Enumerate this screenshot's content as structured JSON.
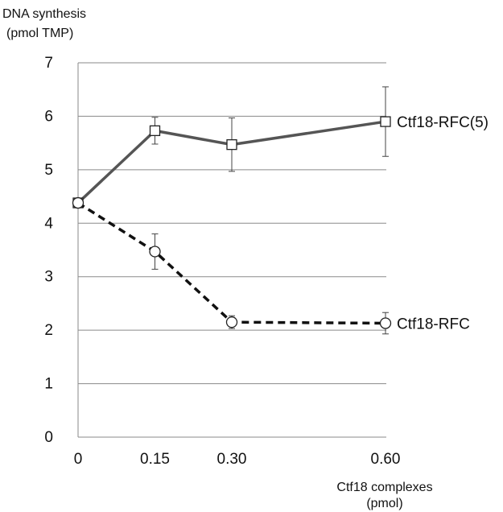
{
  "chart_data": {
    "type": "line",
    "ylabel_line1": "DNA synthesis",
    "ylabel_line2": "(pmol TMP)",
    "xlabel_line1": "Ctf18 complexes",
    "xlabel_line2": "(pmol)",
    "x": [
      0,
      0.15,
      0.3,
      0.6
    ],
    "x_tick_labels": [
      "0",
      "0.15",
      "0.30",
      "0.60"
    ],
    "ylim": [
      0,
      7
    ],
    "y_ticks": [
      0,
      1,
      2,
      3,
      4,
      5,
      6,
      7
    ],
    "grid": true,
    "series": [
      {
        "name": "Ctf18-RFC(5)",
        "values": [
          4.38,
          5.73,
          5.47,
          5.9
        ],
        "error": [
          0,
          0.25,
          0.5,
          0.65
        ],
        "marker": "square",
        "line_style": "solid",
        "color": "#555555"
      },
      {
        "name": "Ctf18-RFC",
        "values": [
          4.38,
          3.47,
          2.15,
          2.13
        ],
        "error": [
          0,
          0.33,
          0.12,
          0.2
        ],
        "marker": "circle",
        "line_style": "dashed",
        "color": "#111111"
      }
    ]
  }
}
